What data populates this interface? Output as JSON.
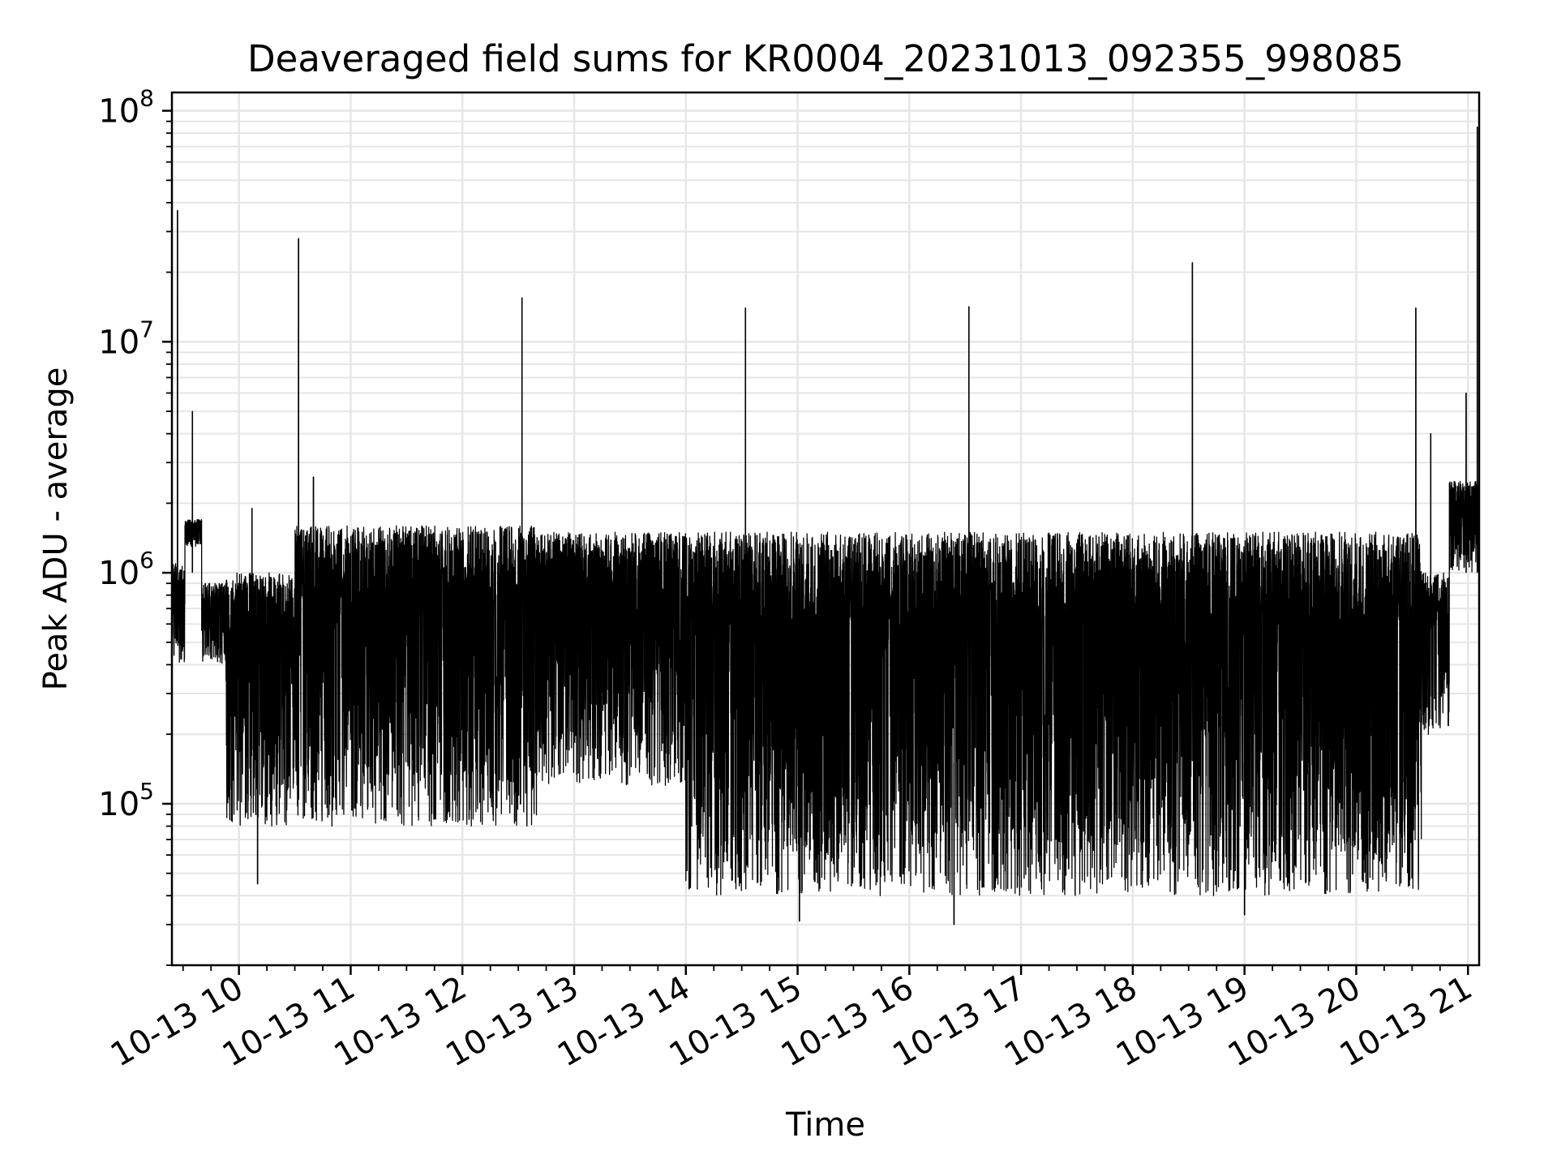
{
  "chart_data": {
    "type": "line",
    "title": "Deaveraged field sums for KR0004_20231013_092355_998085",
    "xlabel": "Time",
    "ylabel": "Peak ADU - average",
    "yscale": "log",
    "xlim": [
      "2023-10-13 09:24",
      "2023-10-13 21:06"
    ],
    "ylim": [
      20000,
      120000000
    ],
    "x_ticks": [
      "10-13 10",
      "10-13 11",
      "10-13 12",
      "10-13 13",
      "10-13 14",
      "10-13 15",
      "10-13 16",
      "10-13 17",
      "10-13 18",
      "10-13 19",
      "10-13 20",
      "10-13 21"
    ],
    "y_ticks": [
      {
        "base": "10",
        "exp": "5"
      },
      {
        "base": "10",
        "exp": "6"
      },
      {
        "base": "10",
        "exp": "7"
      },
      {
        "base": "10",
        "exp": "8"
      }
    ],
    "grid": true,
    "line_color": "#000000",
    "segments": [
      {
        "start": "2023-10-13 09:24",
        "end": "2023-10-13 09:31",
        "low": 400000,
        "high": 1100000
      },
      {
        "start": "2023-10-13 09:31",
        "end": "2023-10-13 09:40",
        "low": 1300000,
        "high": 1700000
      },
      {
        "start": "2023-10-13 09:40",
        "end": "2023-10-13 09:53",
        "low": 400000,
        "high": 900000
      },
      {
        "start": "2023-10-13 09:53",
        "end": "2023-10-13 10:30",
        "low": 80000,
        "high": 1000000
      },
      {
        "start": "2023-10-13 10:30",
        "end": "2023-10-13 12:40",
        "low": 80000,
        "high": 1600000
      },
      {
        "start": "2023-10-13 12:40",
        "end": "2023-10-13 14:00",
        "low": 120000,
        "high": 1500000
      },
      {
        "start": "2023-10-13 14:00",
        "end": "2023-10-13 20:35",
        "low": 40000,
        "high": 1500000
      },
      {
        "start": "2023-10-13 20:35",
        "end": "2023-10-13 20:50",
        "low": 200000,
        "high": 1000000
      },
      {
        "start": "2023-10-13 20:50",
        "end": "2023-10-13 21:06",
        "low": 1000000,
        "high": 2500000
      }
    ],
    "spikes": [
      {
        "t": "2023-10-13 09:27",
        "value": 37000000
      },
      {
        "t": "2023-10-13 09:35",
        "value": 5000000
      },
      {
        "t": "2023-10-13 10:07",
        "value": 1900000
      },
      {
        "t": "2023-10-13 10:32",
        "value": 28000000
      },
      {
        "t": "2023-10-13 10:40",
        "value": 2600000
      },
      {
        "t": "2023-10-13 12:32",
        "value": 15500000
      },
      {
        "t": "2023-10-13 14:32",
        "value": 14000000
      },
      {
        "t": "2023-10-13 16:32",
        "value": 14200000
      },
      {
        "t": "2023-10-13 18:32",
        "value": 22000000
      },
      {
        "t": "2023-10-13 20:32",
        "value": 14000000
      },
      {
        "t": "2023-10-13 20:40",
        "value": 4000000
      },
      {
        "t": "2023-10-13 20:59",
        "value": 6000000
      },
      {
        "t": "2023-10-13 21:05",
        "value": 85000000
      }
    ],
    "dips": [
      {
        "t": "2023-10-13 10:10",
        "value": 45000
      },
      {
        "t": "2023-10-13 16:24",
        "value": 30000
      },
      {
        "t": "2023-10-13 19:00",
        "value": 33000
      },
      {
        "t": "2023-10-13 15:01",
        "value": 31000
      }
    ]
  }
}
